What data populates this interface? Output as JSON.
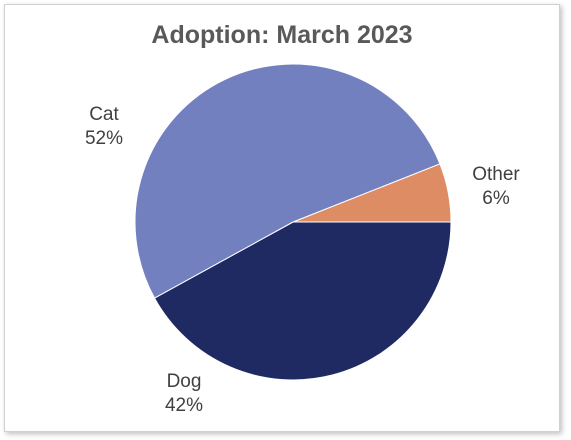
{
  "chart_data": {
    "type": "pie",
    "title": "Adoption: March 2023",
    "slices": [
      {
        "name": "Other",
        "value": 6,
        "label": "6%",
        "color": "#DE8C64"
      },
      {
        "name": "Dog",
        "value": 42,
        "label": "42%",
        "color": "#202A62"
      },
      {
        "name": "Cat",
        "value": 52,
        "label": "52%",
        "color": "#7380BF"
      }
    ],
    "legend": "none",
    "data_labels": "outside"
  }
}
